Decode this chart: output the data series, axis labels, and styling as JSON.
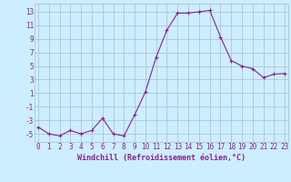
{
  "x": [
    0,
    1,
    2,
    3,
    4,
    5,
    6,
    7,
    8,
    9,
    10,
    11,
    12,
    13,
    14,
    15,
    16,
    17,
    18,
    19,
    20,
    21,
    22,
    23
  ],
  "y": [
    -4,
    -5,
    -5.3,
    -4.5,
    -5,
    -4.5,
    -2.7,
    -5,
    -5.3,
    -2.2,
    1.2,
    6.3,
    10.3,
    12.8,
    12.8,
    13.0,
    13.2,
    9.3,
    5.8,
    5.0,
    4.6,
    3.3,
    3.8,
    3.9
  ],
  "line_color": "#882288",
  "marker": "+",
  "markersize": 3.5,
  "linewidth": 0.8,
  "bg_color": "#cceeff",
  "grid_color": "#aabbcc",
  "xlabel": "Windchill (Refroidissement éolien,°C)",
  "xlabel_fontsize": 6.0,
  "ytick_labels": [
    "13",
    "11",
    "9",
    "7",
    "5",
    "3",
    "1",
    "-1",
    "-3",
    "-5"
  ],
  "yticks": [
    13,
    11,
    9,
    7,
    5,
    3,
    1,
    -1,
    -3,
    -5
  ],
  "xticks": [
    0,
    1,
    2,
    3,
    4,
    5,
    6,
    7,
    8,
    9,
    10,
    11,
    12,
    13,
    14,
    15,
    16,
    17,
    18,
    19,
    20,
    21,
    22,
    23
  ],
  "xlim": [
    -0.3,
    23.3
  ],
  "ylim": [
    -6.2,
    14.2
  ],
  "tick_fontsize": 5.5,
  "spine_color": "#aabbcc"
}
